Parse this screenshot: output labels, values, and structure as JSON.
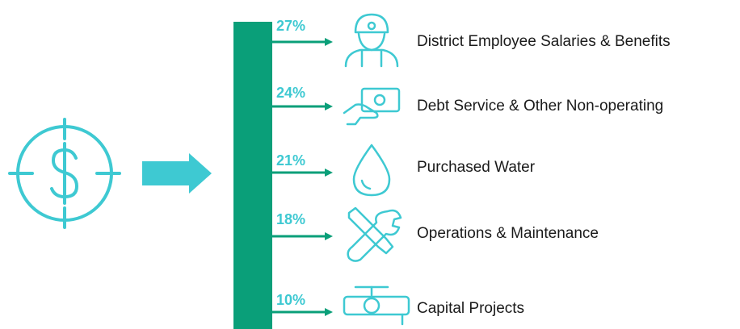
{
  "items": [
    {
      "percent": "27%",
      "label": "District Employee Salaries & Benefits"
    },
    {
      "percent": "24%",
      "label": "Debt Service & Other Non-operating"
    },
    {
      "percent": "21%",
      "label": "Purchased Water"
    },
    {
      "percent": "18%",
      "label": "Operations & Maintenance"
    },
    {
      "percent": "10%",
      "label": "Capital Projects"
    }
  ]
}
